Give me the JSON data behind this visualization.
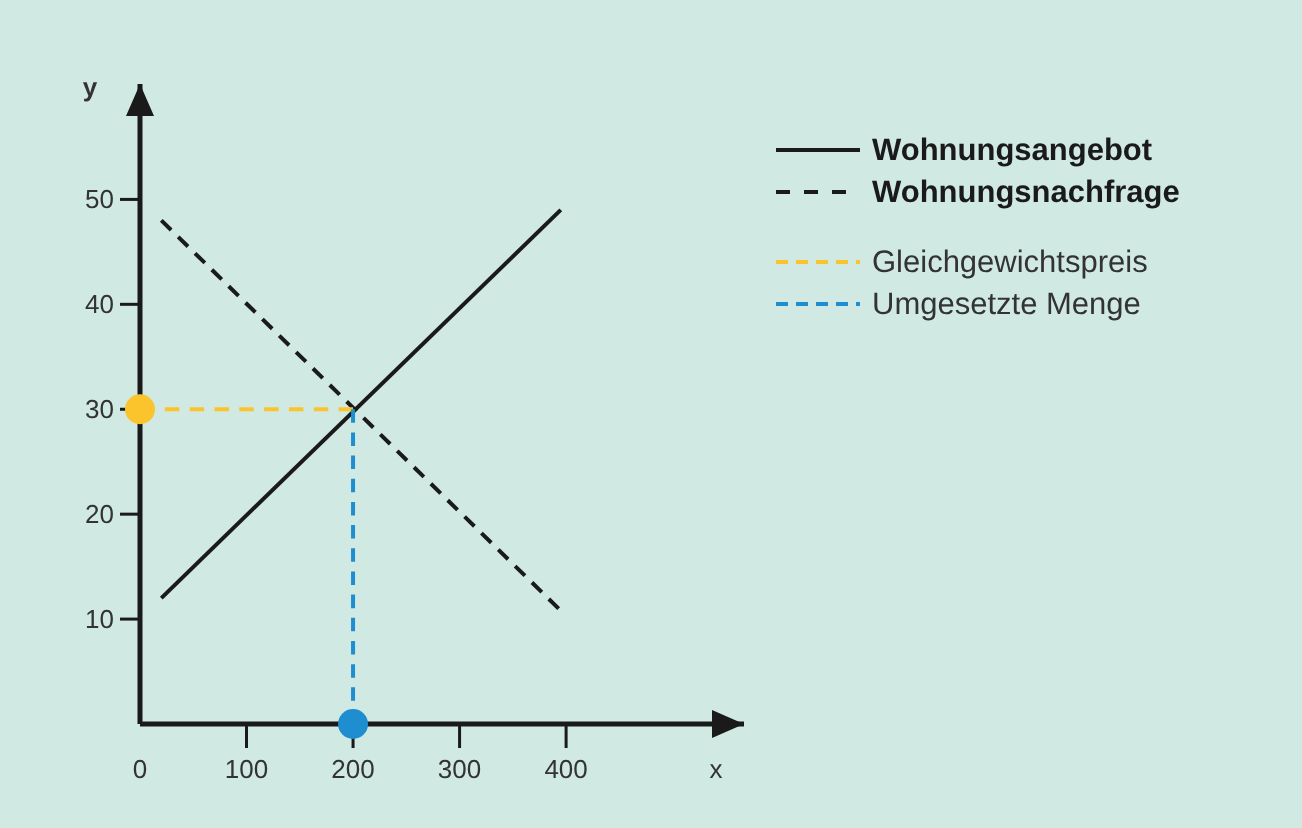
{
  "chart_data": {
    "type": "line",
    "xlabel": "x",
    "ylabel": "y",
    "xlim": [
      0,
      567
    ],
    "ylim": [
      0,
      61
    ],
    "xticks": [
      0,
      100,
      200,
      300,
      400
    ],
    "yticks": [
      10,
      20,
      30,
      40,
      50
    ],
    "grid": false,
    "legend": "right",
    "series": [
      {
        "name": "Wohnungsangebot",
        "color": "#1a1a1a",
        "x": [
          20,
          395
        ],
        "values": [
          12,
          49
        ],
        "line_style": "solid"
      },
      {
        "name": "Wohnungsnachfrage",
        "color": "#1a1a1a",
        "x": [
          20,
          393
        ],
        "values": [
          48,
          11
        ],
        "line_style": "dashed"
      },
      {
        "name": "Gleichgewichtspreis",
        "color": "#fcc42c",
        "x": [
          0,
          200
        ],
        "values": [
          30,
          30
        ],
        "line_style": "dashed"
      },
      {
        "name": "Umgesetzte Menge",
        "color": "#1e8ed0",
        "x": [
          200,
          200
        ],
        "values": [
          30,
          0
        ],
        "line_style": "dashed"
      },
      {
        "type": "scatter",
        "color": "#fcc42c",
        "x": [
          0
        ],
        "values": [
          30
        ],
        "marker": "circle"
      },
      {
        "type": "scatter",
        "color": "#1e8ed0",
        "x": [
          200
        ],
        "values": [
          0
        ],
        "marker": "circle"
      }
    ]
  }
}
